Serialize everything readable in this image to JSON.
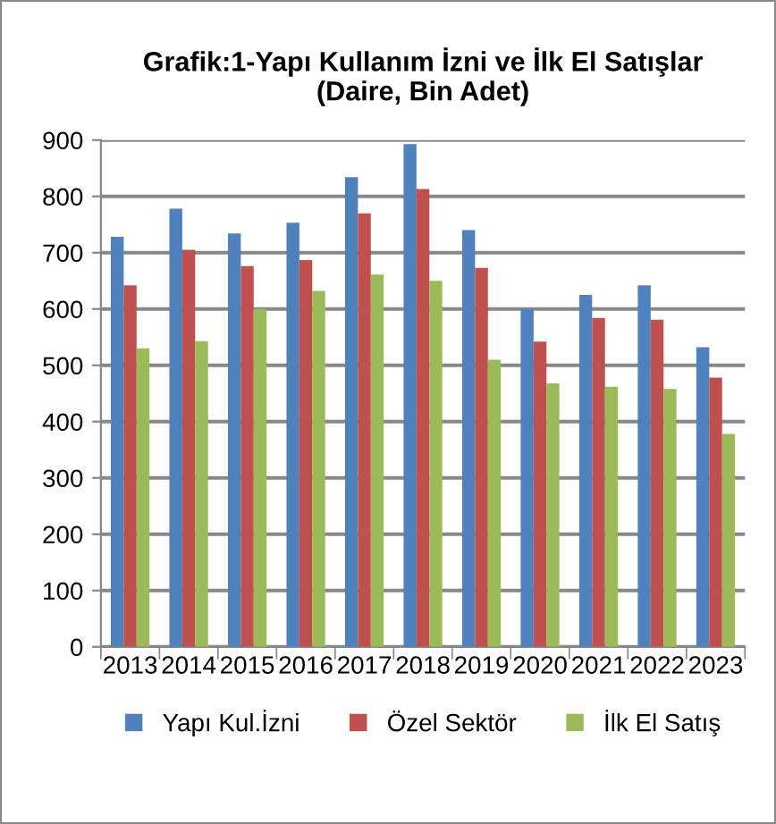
{
  "chart_data": {
    "type": "bar",
    "title": "Grafik:1-Yapı Kullanım İzni ve İlk El Satışlar\n(Daire, Bin Adet)",
    "categories": [
      "2013",
      "2014",
      "2015",
      "2016",
      "2017",
      "2018",
      "2019",
      "2020",
      "2021",
      "2022",
      "2023"
    ],
    "series": [
      {
        "name": "Yapı Kul.İzni",
        "color": "#4f81bd",
        "values": [
          728,
          778,
          734,
          753,
          834,
          893,
          740,
          600,
          625,
          642,
          532
        ]
      },
      {
        "name": "Özel Sektör",
        "color": "#c0504d",
        "values": [
          642,
          705,
          676,
          687,
          770,
          813,
          673,
          542,
          584,
          581,
          478
        ]
      },
      {
        "name": "İlk El Satış",
        "color": "#9bbb59",
        "values": [
          530,
          543,
          600,
          632,
          661,
          650,
          510,
          468,
          462,
          458,
          378
        ]
      }
    ],
    "ylim": [
      0,
      900
    ],
    "yticks": [
      0,
      100,
      200,
      300,
      400,
      500,
      600,
      700,
      800,
      900
    ],
    "grid": "y",
    "legend": "bottom"
  }
}
